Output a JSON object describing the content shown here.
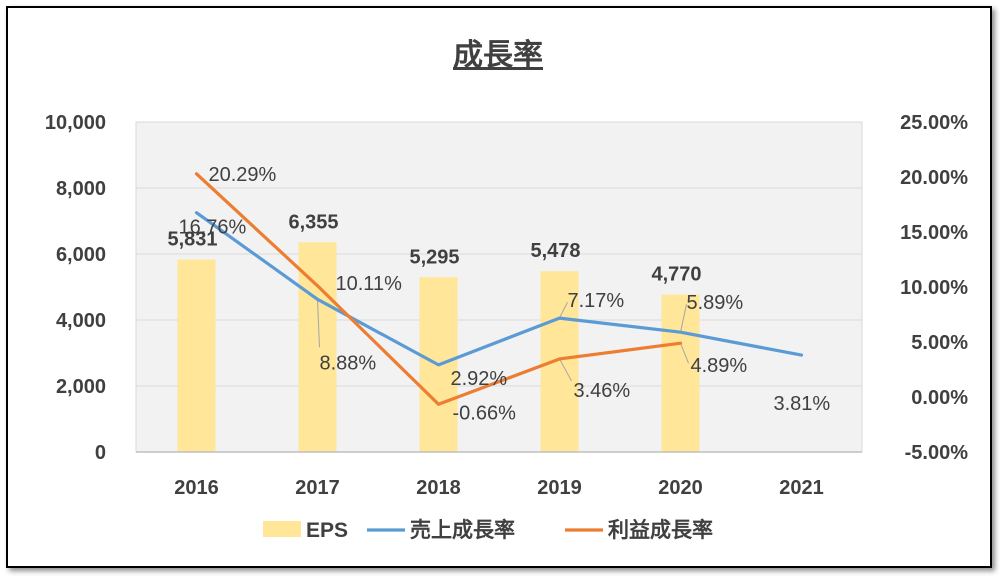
{
  "chart_data": {
    "type": "bar",
    "title": "成長率",
    "categories": [
      "2016",
      "2017",
      "2018",
      "2019",
      "2020",
      "2021"
    ],
    "y_left": {
      "ylim": [
        0,
        10000
      ],
      "ticks": [
        "0",
        "2,000",
        "4,000",
        "6,000",
        "8,000",
        "10,000"
      ]
    },
    "y_right": {
      "ylim": [
        -5,
        25
      ],
      "ticks": [
        "-5.00%",
        "0.00%",
        "5.00%",
        "10.00%",
        "15.00%",
        "20.00%",
        "25.00%"
      ]
    },
    "series": [
      {
        "name": "EPS",
        "type": "bar",
        "axis": "left",
        "color": "#FFE699",
        "values": [
          5831,
          6355,
          5295,
          5478,
          4770,
          null
        ],
        "labels": [
          "5,831",
          "6,355",
          "5,295",
          "5,478",
          "4,770",
          ""
        ]
      },
      {
        "name": "売上成長率",
        "type": "line",
        "axis": "right",
        "color": "#5B9BD5",
        "values": [
          16.76,
          8.88,
          2.92,
          7.17,
          5.89,
          3.81
        ],
        "labels": [
          "16.76%",
          "8.88%",
          "2.92%",
          "7.17%",
          "5.89%",
          "3.81%"
        ]
      },
      {
        "name": "利益成長率",
        "type": "line",
        "axis": "right",
        "color": "#ED7D31",
        "values": [
          20.29,
          10.11,
          -0.66,
          3.46,
          4.89,
          null
        ],
        "labels": [
          "20.29%",
          "10.11%",
          "-0.66%",
          "3.46%",
          "4.89%",
          ""
        ]
      }
    ],
    "grid": true,
    "legend": "bottom"
  }
}
